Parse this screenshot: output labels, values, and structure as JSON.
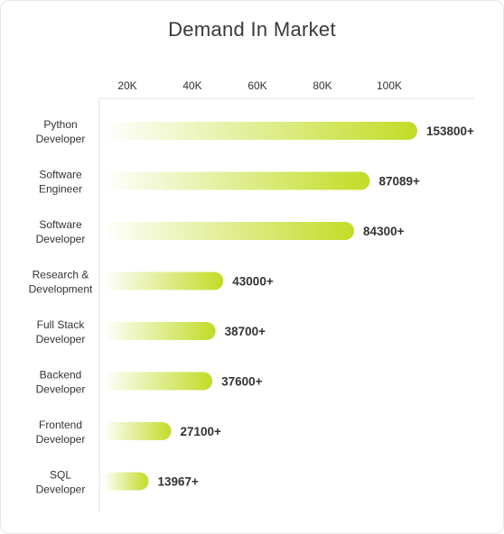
{
  "chart_data": {
    "type": "bar",
    "orientation": "horizontal",
    "title": "Demand In Market",
    "xlabel": "",
    "ylabel": "",
    "x_ticks": [
      "20K",
      "40K",
      "60K",
      "80K",
      "100K"
    ],
    "categories": [
      [
        "Python",
        "Developer"
      ],
      [
        "Software",
        "Engineer"
      ],
      [
        "Software",
        "Developer"
      ],
      [
        "Research &",
        "Development"
      ],
      [
        "Full Stack",
        "Developer"
      ],
      [
        "Backend",
        "Developer"
      ],
      [
        "Frontend",
        "Developer"
      ],
      [
        "SQL",
        "Developer"
      ]
    ],
    "bar_fill_fractions": [
      1.0,
      0.849,
      0.799,
      0.383,
      0.358,
      0.348,
      0.217,
      0.145
    ],
    "values": [
      153800,
      87089,
      84300,
      43000,
      38700,
      37600,
      27100,
      13967
    ],
    "value_labels": [
      "153800+",
      "87089+",
      "84300+",
      "43000+",
      "38700+",
      "37600+",
      "27100+",
      "13967+"
    ],
    "legend": "none",
    "grid": false,
    "colors": {
      "bar_start": "#ffffff",
      "bar_end": "#c2dc26",
      "axis": "#e3e3e3",
      "text": "#333333"
    }
  }
}
